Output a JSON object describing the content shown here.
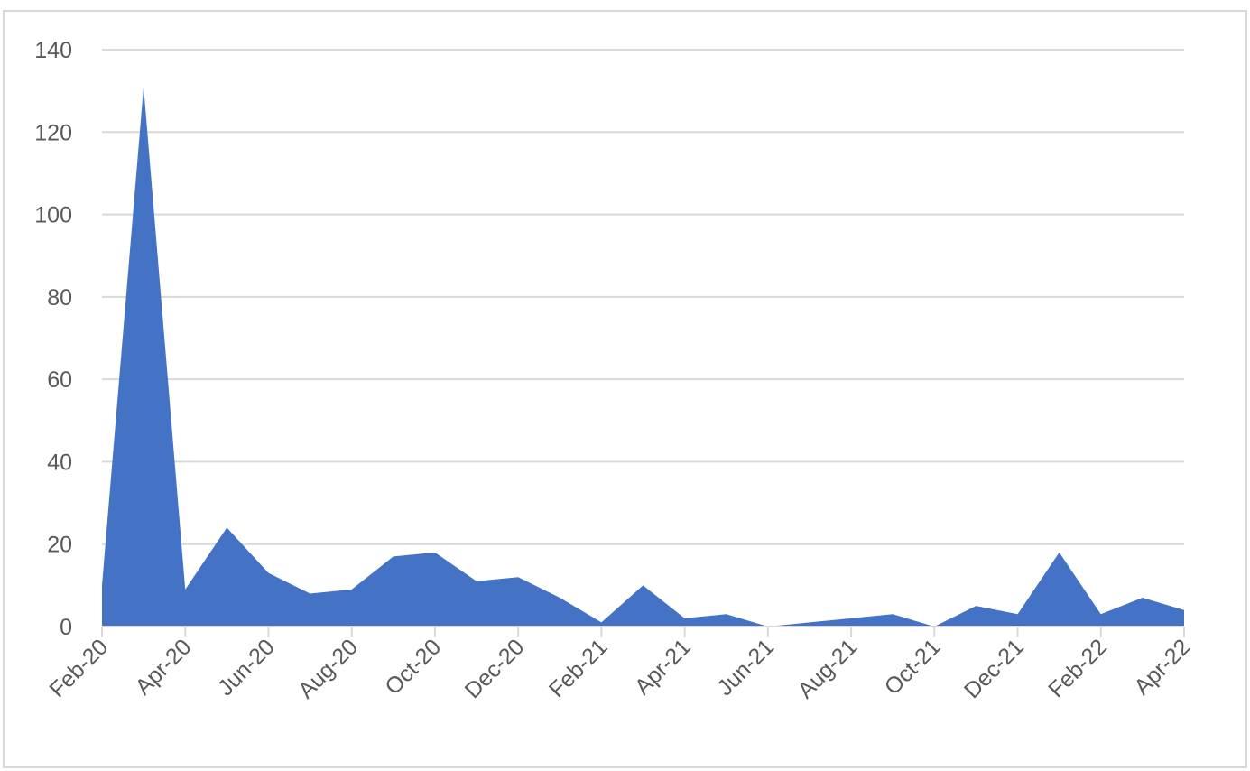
{
  "chart_data": {
    "type": "area",
    "title": "",
    "xlabel": "",
    "ylabel": "",
    "ylim": [
      0,
      140
    ],
    "y_ticks": [
      "0",
      "20",
      "40",
      "60",
      "80",
      "100",
      "120",
      "140"
    ],
    "x_tick_labels": [
      "Feb-20",
      "Apr-20",
      "Jun-20",
      "Aug-20",
      "Oct-20",
      "Dec-20",
      "Feb-21",
      "Apr-21",
      "Jun-21",
      "Aug-21",
      "Oct-21",
      "Dec-21",
      "Feb-22",
      "Apr-22"
    ],
    "x": [
      "Feb-20",
      "Mar-20",
      "Apr-20",
      "May-20",
      "Jun-20",
      "Jul-20",
      "Aug-20",
      "Sep-20",
      "Oct-20",
      "Nov-20",
      "Dec-20",
      "Jan-21",
      "Feb-21",
      "Mar-21",
      "Apr-21",
      "May-21",
      "Jun-21",
      "Jul-21",
      "Aug-21",
      "Sep-21",
      "Oct-21",
      "Nov-21",
      "Dec-21",
      "Jan-22",
      "Feb-22",
      "Mar-22",
      "Apr-22"
    ],
    "values": [
      10,
      131,
      9,
      24,
      13,
      8,
      9,
      17,
      18,
      11,
      12,
      7,
      1,
      10,
      2,
      3,
      0,
      1,
      2,
      3,
      0,
      5,
      3,
      18,
      3,
      7,
      4
    ],
    "grid": true,
    "legend": "none",
    "colors": {
      "fill": "#4472c4",
      "grid": "#d9d9d9",
      "text": "#595959"
    }
  }
}
